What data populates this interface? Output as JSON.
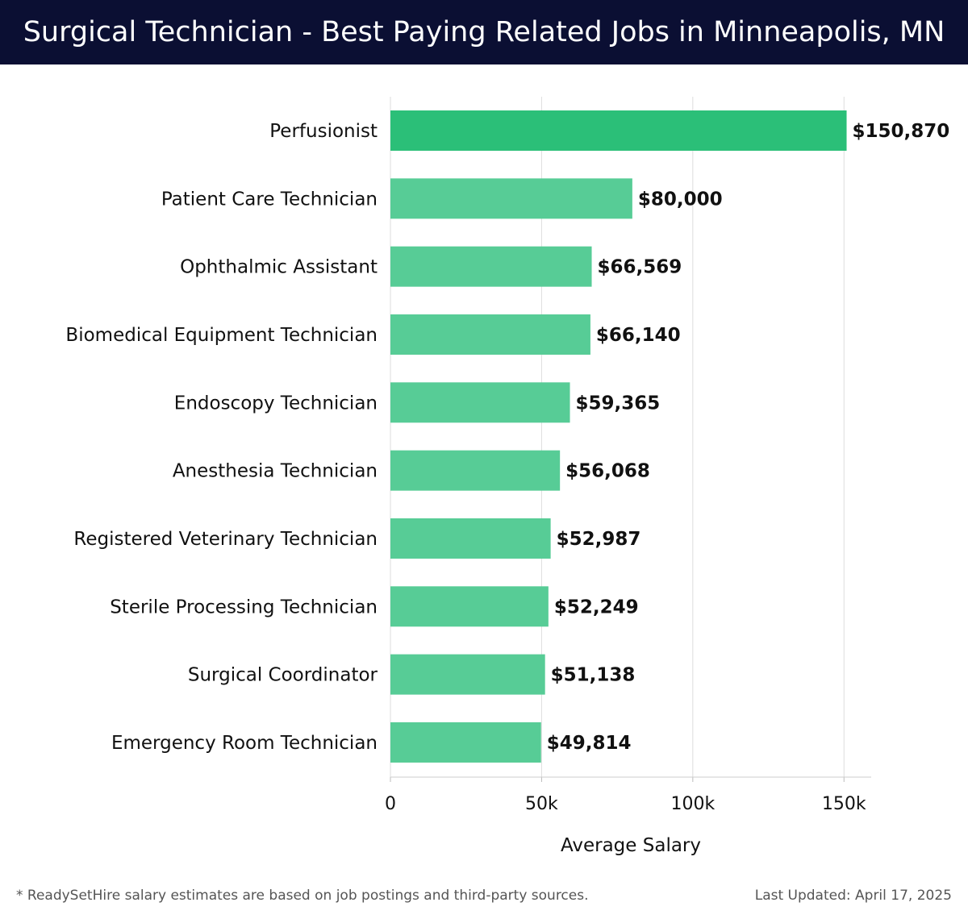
{
  "header": {
    "title": "Surgical Technician - Best Paying Related Jobs in Minneapolis, MN"
  },
  "chart_data": {
    "type": "bar",
    "orientation": "horizontal",
    "categories": [
      "Perfusionist",
      "Patient Care Technician",
      "Ophthalmic Assistant",
      "Biomedical Equipment Technician",
      "Endoscopy Technician",
      "Anesthesia Technician",
      "Registered Veterinary Technician",
      "Sterile Processing Technician",
      "Surgical Coordinator",
      "Emergency Room Technician"
    ],
    "values": [
      150870,
      80000,
      66569,
      66140,
      59365,
      56068,
      52987,
      52249,
      51138,
      49814
    ],
    "value_labels": [
      "$150,870",
      "$80,000",
      "$66,569",
      "$66,140",
      "$59,365",
      "$56,068",
      "$52,987",
      "$52,249",
      "$51,138",
      "$49,814"
    ],
    "xlabel": "Average Salary",
    "ylabel": "",
    "xlim": [
      0,
      159000
    ],
    "x_ticks": [
      0,
      50000,
      100000,
      150000
    ],
    "x_tick_labels": [
      "0",
      "50k",
      "100k",
      "150k"
    ],
    "grid": "vertical",
    "colors": {
      "top_bar": "#2bbf78",
      "bar": "#57cc96"
    }
  },
  "footer": {
    "note": "* ReadySetHire salary estimates are based on job postings and third-party sources.",
    "updated": "Last Updated: April 17, 2025"
  }
}
